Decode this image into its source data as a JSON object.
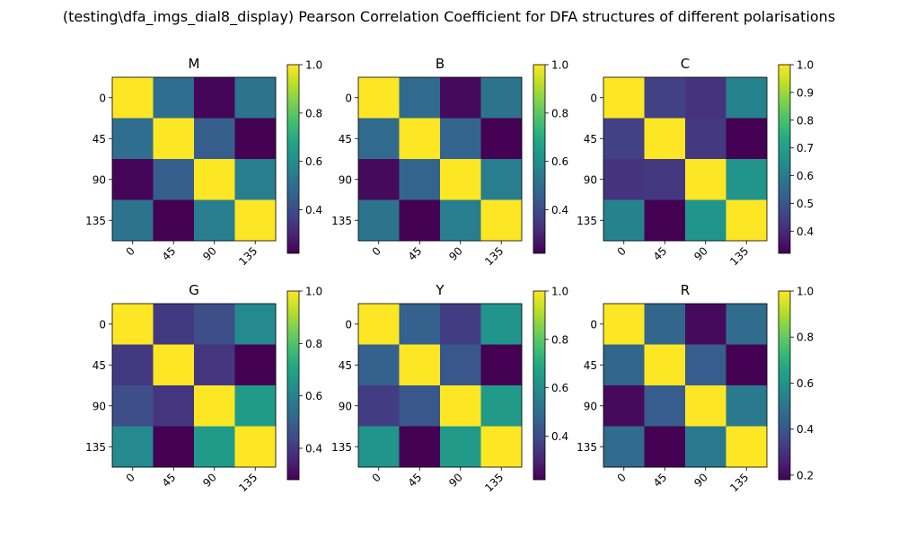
{
  "figure": {
    "suptitle": "(testing\\dfa_imgs_dial8_display) Pearson Correlation Coefficient for DFA structures of different polarisations"
  },
  "colormap": "viridis",
  "chart_data": [
    {
      "type": "heatmap",
      "title": "M",
      "x_ticks": [
        "0",
        "45",
        "90",
        "135"
      ],
      "y_ticks": [
        "0",
        "45",
        "90",
        "135"
      ],
      "matrix": [
        [
          1.0,
          0.5,
          0.23,
          0.52
        ],
        [
          0.5,
          1.0,
          0.45,
          0.22
        ],
        [
          0.23,
          0.45,
          1.0,
          0.55
        ],
        [
          0.52,
          0.22,
          0.55,
          1.0
        ]
      ],
      "vmin": 0.22,
      "vmax": 1.0,
      "colorbar_ticks": [
        0.4,
        0.6,
        0.8,
        1.0
      ],
      "colorbar_tick_labels": [
        "0.4",
        "0.6",
        "0.8",
        "1.0"
      ]
    },
    {
      "type": "heatmap",
      "title": "B",
      "x_ticks": [
        "0",
        "45",
        "90",
        "135"
      ],
      "y_ticks": [
        "0",
        "45",
        "90",
        "135"
      ],
      "matrix": [
        [
          1.0,
          0.49,
          0.24,
          0.52
        ],
        [
          0.49,
          1.0,
          0.47,
          0.22
        ],
        [
          0.24,
          0.47,
          1.0,
          0.55
        ],
        [
          0.52,
          0.22,
          0.55,
          1.0
        ]
      ],
      "vmin": 0.22,
      "vmax": 1.0,
      "colorbar_ticks": [
        0.4,
        0.6,
        0.8,
        1.0
      ],
      "colorbar_tick_labels": [
        "0.4",
        "0.6",
        "0.8",
        "1.0"
      ]
    },
    {
      "type": "heatmap",
      "title": "C",
      "x_ticks": [
        "0",
        "45",
        "90",
        "135"
      ],
      "y_ticks": [
        "0",
        "45",
        "90",
        "135"
      ],
      "matrix": [
        [
          1.0,
          0.45,
          0.42,
          0.62
        ],
        [
          0.45,
          1.0,
          0.43,
          0.32
        ],
        [
          0.42,
          0.43,
          1.0,
          0.67
        ],
        [
          0.62,
          0.32,
          0.67,
          1.0
        ]
      ],
      "vmin": 0.32,
      "vmax": 1.0,
      "colorbar_ticks": [
        0.4,
        0.5,
        0.6,
        0.7,
        0.8,
        0.9,
        1.0
      ],
      "colorbar_tick_labels": [
        "0.4",
        "0.5",
        "0.6",
        "0.7",
        "0.8",
        "0.9",
        "1.0"
      ]
    },
    {
      "type": "heatmap",
      "title": "G",
      "x_ticks": [
        "0",
        "45",
        "90",
        "135"
      ],
      "y_ticks": [
        "0",
        "45",
        "90",
        "135"
      ],
      "matrix": [
        [
          1.0,
          0.4,
          0.45,
          0.62
        ],
        [
          0.4,
          1.0,
          0.39,
          0.28
        ],
        [
          0.45,
          0.39,
          1.0,
          0.67
        ],
        [
          0.62,
          0.28,
          0.67,
          1.0
        ]
      ],
      "vmin": 0.28,
      "vmax": 1.0,
      "colorbar_ticks": [
        0.4,
        0.6,
        0.8,
        1.0
      ],
      "colorbar_tick_labels": [
        "0.4",
        "0.6",
        "0.8",
        "1.0"
      ]
    },
    {
      "type": "heatmap",
      "title": "Y",
      "x_ticks": [
        "0",
        "45",
        "90",
        "135"
      ],
      "y_ticks": [
        "0",
        "45",
        "90",
        "135"
      ],
      "matrix": [
        [
          1.0,
          0.46,
          0.36,
          0.62
        ],
        [
          0.46,
          1.0,
          0.43,
          0.22
        ],
        [
          0.36,
          0.43,
          1.0,
          0.64
        ],
        [
          0.62,
          0.22,
          0.64,
          1.0
        ]
      ],
      "vmin": 0.22,
      "vmax": 1.0,
      "colorbar_ticks": [
        0.4,
        0.6,
        0.8,
        1.0
      ],
      "colorbar_tick_labels": [
        "0.4",
        "0.6",
        "0.8",
        "1.0"
      ]
    },
    {
      "type": "heatmap",
      "title": "R",
      "x_ticks": [
        "0",
        "45",
        "90",
        "135"
      ],
      "y_ticks": [
        "0",
        "45",
        "90",
        "135"
      ],
      "matrix": [
        [
          1.0,
          0.45,
          0.2,
          0.47
        ],
        [
          0.45,
          1.0,
          0.42,
          0.18
        ],
        [
          0.2,
          0.42,
          1.0,
          0.51
        ],
        [
          0.47,
          0.18,
          0.51,
          1.0
        ]
      ],
      "vmin": 0.18,
      "vmax": 1.0,
      "colorbar_ticks": [
        0.2,
        0.4,
        0.6,
        0.8,
        1.0
      ],
      "colorbar_tick_labels": [
        "0.2",
        "0.4",
        "0.6",
        "0.8",
        "1.0"
      ]
    }
  ]
}
